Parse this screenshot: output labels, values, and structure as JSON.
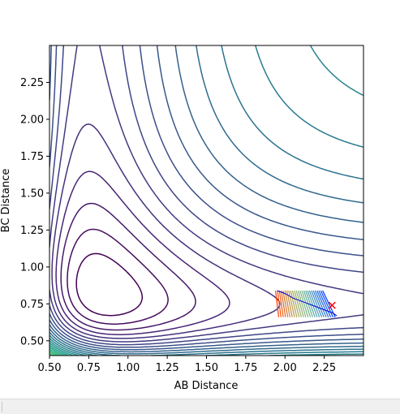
{
  "chart_data": {
    "type": "contour",
    "xlabel": "AB Distance",
    "ylabel": "BC Distance",
    "xlim": [
      0.5,
      2.5
    ],
    "ylim": [
      0.4,
      2.5
    ],
    "xticks": [
      "0.50",
      "0.75",
      "1.00",
      "1.25",
      "1.50",
      "1.75",
      "2.00",
      "2.25"
    ],
    "yticks": [
      "0.50",
      "0.75",
      "1.00",
      "1.25",
      "1.50",
      "1.75",
      "2.00",
      "2.25"
    ],
    "colormap": "viridis",
    "contour_levels": 30,
    "grid": false,
    "trajectory": {
      "color": "#0000cc",
      "x": [
        1.95,
        2.0,
        2.05,
        2.1,
        2.15,
        2.2,
        2.25,
        2.3,
        2.33
      ],
      "y": [
        0.84,
        0.82,
        0.79,
        0.77,
        0.75,
        0.73,
        0.71,
        0.69,
        0.67
      ]
    },
    "start_marker": {
      "x": 2.3,
      "y": 0.74,
      "symbol": "x",
      "color": "#ff0000"
    }
  }
}
